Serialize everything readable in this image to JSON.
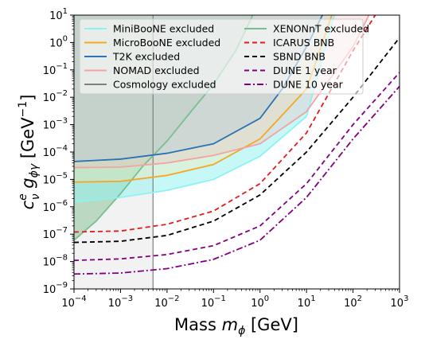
{
  "chart_data": {
    "type": "line",
    "xlabel": "Mass m_φ [GeV]",
    "ylabel": "c_ν^e g_φγ [GeV^−1]",
    "x_scale": "log",
    "y_scale": "log",
    "xlim": [
      0.0001,
      1000
    ],
    "ylim": [
      1e-09,
      10
    ],
    "grid": false,
    "legend_placement": "top-left",
    "x_ticks": [
      {
        "value": 0.0001,
        "base": "10",
        "exp": "−4"
      },
      {
        "value": 0.001,
        "base": "10",
        "exp": "−3"
      },
      {
        "value": 0.01,
        "base": "10",
        "exp": "−2"
      },
      {
        "value": 0.1,
        "base": "10",
        "exp": "−1"
      },
      {
        "value": 1,
        "base": "10",
        "exp": "0"
      },
      {
        "value": 10,
        "base": "10",
        "exp": "1"
      },
      {
        "value": 100,
        "base": "10",
        "exp": "2"
      },
      {
        "value": 1000,
        "base": "10",
        "exp": "3"
      }
    ],
    "y_ticks": [
      {
        "value": 1e-09,
        "base": "10",
        "exp": "−9"
      },
      {
        "value": 1e-08,
        "base": "10",
        "exp": "−8"
      },
      {
        "value": 1e-07,
        "base": "10",
        "exp": "−7"
      },
      {
        "value": 1e-06,
        "base": "10",
        "exp": "−6"
      },
      {
        "value": 1e-05,
        "base": "10",
        "exp": "−5"
      },
      {
        "value": 0.0001,
        "base": "10",
        "exp": "−4"
      },
      {
        "value": 0.001,
        "base": "10",
        "exp": "−3"
      },
      {
        "value": 0.01,
        "base": "10",
        "exp": "−2"
      },
      {
        "value": 0.1,
        "base": "10",
        "exp": "−1"
      },
      {
        "value": 1,
        "base": "10",
        "exp": "0"
      },
      {
        "value": 10,
        "base": "10",
        "exp": "1"
      }
    ],
    "excluded_regions": [
      {
        "name": "Cosmology excluded",
        "color": "#7f7f7f",
        "fill": "#d9d9d9",
        "fill_opacity": 0.35,
        "x": [
          0.0001,
          0.005
        ],
        "y": [
          1e-09,
          10
        ]
      },
      {
        "name": "XENONnT excluded",
        "color": "#77c08e",
        "fill": "#78b98a",
        "fill_opacity": 0.45,
        "x": [
          0.0001,
          0.0003,
          0.001,
          0.003,
          0.01,
          0.03,
          0.1,
          0.3,
          0.7
        ],
        "y": [
          6e-08,
          3e-07,
          3e-06,
          3e-05,
          0.00025,
          0.0025,
          0.03,
          0.5,
          10
        ]
      },
      {
        "name": "MiniBooNE excluded",
        "color": "#8ff2f2",
        "fill": "#8ff2f2",
        "fill_opacity": 0.5,
        "x": [
          0.0001,
          0.001,
          0.01,
          0.1,
          1,
          10,
          40
        ],
        "y": [
          1.5e-06,
          2.2e-06,
          4e-06,
          1e-05,
          7e-05,
          0.002,
          10
        ]
      },
      {
        "name": "MicroBooNE excluded",
        "color": "#f5a623",
        "fill": "#fde7b0",
        "fill_opacity": 0.35,
        "x": [
          0.0001,
          0.001,
          0.01,
          0.1,
          1,
          10,
          35
        ],
        "y": [
          8e-06,
          8.5e-06,
          1.4e-05,
          3.5e-05,
          0.0003,
          0.02,
          10
        ]
      },
      {
        "name": "NOMAD excluded",
        "color": "#f2a3a3",
        "fill": "#f2b5b5",
        "fill_opacity": 0.3,
        "x": [
          0.0001,
          0.001,
          0.01,
          0.1,
          1,
          10,
          100,
          220
        ],
        "y": [
          2.7e-05,
          2.8e-05,
          4e-05,
          7.5e-05,
          0.0002,
          0.003,
          0.7,
          10
        ]
      },
      {
        "name": "T2K excluded",
        "color": "#2a73b5",
        "fill": "#a9c4da",
        "fill_opacity": 0.3,
        "x": [
          0.0001,
          0.001,
          0.01,
          0.1,
          1,
          3,
          10,
          22
        ],
        "y": [
          4.5e-05,
          5.5e-05,
          9e-05,
          0.0002,
          0.0017,
          0.02,
          0.7,
          10
        ]
      }
    ],
    "projections": [
      {
        "name": "ICARUS BNB",
        "color": "#e41a1c",
        "dash": "6,4",
        "x": [
          0.0001,
          0.001,
          0.01,
          0.1,
          1,
          10,
          100,
          300
        ],
        "y": [
          1.2e-07,
          1.3e-07,
          2.3e-07,
          7e-07,
          7e-06,
          0.0005,
          0.5,
          10
        ]
      },
      {
        "name": "SBND BNB",
        "color": "#000000",
        "dash": "6,4",
        "x": [
          0.0001,
          0.001,
          0.01,
          0.1,
          1,
          10,
          100,
          1000
        ],
        "y": [
          5e-08,
          5.5e-08,
          9e-08,
          3e-07,
          2.7e-06,
          0.0001,
          0.01,
          1.5
        ]
      },
      {
        "name": "DUNE 1 year",
        "color": "#800080",
        "dash": "6,4",
        "x": [
          0.0001,
          0.001,
          0.01,
          0.1,
          1,
          10,
          100,
          1000
        ],
        "y": [
          1.1e-08,
          1.25e-08,
          1.8e-08,
          3.8e-08,
          2e-07,
          7e-06,
          0.001,
          0.08
        ]
      },
      {
        "name": "DUNE 10 year",
        "color": "#800080",
        "dash": "8,3,2,3",
        "x": [
          0.0001,
          0.001,
          0.01,
          0.1,
          1,
          10,
          100,
          1000
        ],
        "y": [
          3.5e-09,
          3.8e-09,
          5.5e-09,
          1.2e-08,
          6e-08,
          2.2e-06,
          0.0003,
          0.025
        ]
      }
    ],
    "legend": {
      "columns": [
        [
          "MiniBooNE excluded",
          "MicroBooNE excluded",
          "T2K excluded",
          "NOMAD excluded",
          "Cosmology excluded"
        ],
        [
          "XENONnT excluded",
          "ICARUS BNB",
          "SBND BNB",
          "DUNE 1 year",
          "DUNE 10 year"
        ]
      ]
    }
  }
}
